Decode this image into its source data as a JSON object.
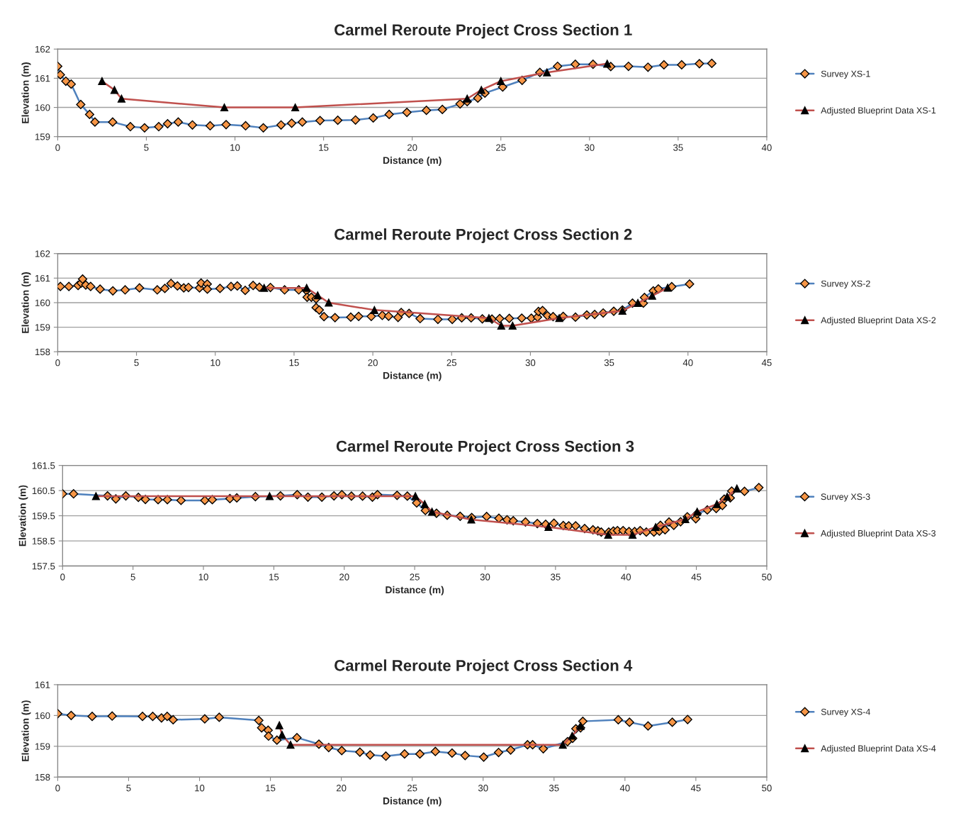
{
  "chart_data": [
    {
      "type": "line",
      "title": "Carmel Reroute Project Cross Section 1",
      "xlabel": "Distance (m)",
      "ylabel": "Elevation (m)",
      "xlim": [
        0,
        40
      ],
      "xticks": [
        0,
        5,
        10,
        15,
        20,
        25,
        30,
        35,
        40
      ],
      "ylim": [
        159,
        162
      ],
      "yticks": [
        159,
        160,
        161,
        162
      ],
      "grid": "y",
      "legend": "right",
      "line_style": "solid",
      "series": [
        {
          "name": "Survey XS-1",
          "color": "#4f81bd",
          "marker": "diamond",
          "x": [
            0,
            0.15,
            0.46,
            0.76,
            1.3,
            1.8,
            2.1,
            3.1,
            4.1,
            4.9,
            5.7,
            6.2,
            6.8,
            7.6,
            8.6,
            9.5,
            10.6,
            11.6,
            12.6,
            13.2,
            13.8,
            14.8,
            15.8,
            16.8,
            17.8,
            18.7,
            19.7,
            20.8,
            21.7,
            22.7,
            23.1,
            23.7,
            24.1,
            25.1,
            26.2,
            27.2,
            28.2,
            29.2,
            30.2,
            31.2,
            32.2,
            33.3,
            34.2,
            35.2,
            36.2,
            36.9
          ],
          "values": [
            161.41,
            161.12,
            160.9,
            160.8,
            160.1,
            159.76,
            159.5,
            159.5,
            159.34,
            159.3,
            159.34,
            159.44,
            159.5,
            159.4,
            159.37,
            159.41,
            159.37,
            159.3,
            159.4,
            159.46,
            159.5,
            159.55,
            159.56,
            159.57,
            159.64,
            159.76,
            159.83,
            159.9,
            159.93,
            160.12,
            160.2,
            160.32,
            160.49,
            160.7,
            160.93,
            161.2,
            161.41,
            161.48,
            161.48,
            161.4,
            161.41,
            161.38,
            161.46,
            161.46,
            161.5,
            161.51
          ]
        },
        {
          "name": "Adjusted Blueprint Data XS-1",
          "color": "#c0504d",
          "marker": "triangle",
          "x": [
            2.5,
            3.2,
            3.6,
            9.4,
            13.4,
            23.1,
            23.9,
            25.0,
            27.6,
            31.0
          ],
          "values": [
            160.9,
            160.6,
            160.3,
            160.0,
            160.0,
            160.3,
            160.6,
            160.9,
            161.2,
            161.5
          ]
        }
      ]
    },
    {
      "type": "line",
      "title": "Carmel Reroute Project Cross Section 2",
      "xlabel": "Distance (m)",
      "ylabel": "Elevation (m)",
      "xlim": [
        0,
        45
      ],
      "xticks": [
        0,
        5,
        10,
        15,
        20,
        25,
        30,
        35,
        40,
        45
      ],
      "ylim": [
        158,
        162
      ],
      "yticks": [
        158,
        159,
        160,
        161,
        162
      ],
      "grid": "y",
      "legend": "right",
      "line_style": "solid",
      "series": [
        {
          "name": "Survey XS-2",
          "color": "#4f81bd",
          "marker": "diamond",
          "x": [
            0.17,
            0.71,
            1.29,
            1.49,
            1.58,
            1.78,
            2.09,
            2.69,
            3.5,
            4.28,
            5.19,
            6.32,
            6.8,
            7.19,
            7.6,
            8.0,
            8.3,
            9.0,
            9.1,
            9.49,
            9.5,
            10.3,
            11.0,
            11.4,
            11.9,
            12.4,
            12.8,
            13.5,
            14.4,
            15.3,
            15.79,
            15.83,
            16.1,
            16.4,
            16.4,
            16.6,
            16.9,
            17.6,
            18.6,
            19.1,
            19.9,
            20.6,
            21.0,
            21.6,
            21.8,
            22.3,
            23.0,
            24.13,
            25.04,
            25.64,
            26.24,
            26.95,
            27.56,
            28.05,
            28.66,
            29.45,
            30.06,
            30.45,
            30.51,
            30.77,
            31.08,
            31.44,
            32.08,
            32.86,
            33.58,
            34.08,
            34.62,
            35.29,
            35.84,
            36.48,
            37.17,
            37.24,
            37.8,
            38.12,
            38.97,
            40.1
          ],
          "values": [
            160.66,
            160.66,
            160.7,
            160.8,
            160.96,
            160.72,
            160.66,
            160.55,
            160.48,
            160.52,
            160.6,
            160.52,
            160.58,
            160.78,
            160.68,
            160.6,
            160.62,
            160.6,
            160.8,
            160.76,
            160.55,
            160.58,
            160.66,
            160.68,
            160.5,
            160.7,
            160.63,
            160.62,
            160.52,
            160.52,
            160.49,
            160.22,
            160.22,
            160.16,
            159.8,
            159.7,
            159.43,
            159.39,
            159.41,
            159.44,
            159.44,
            159.48,
            159.45,
            159.4,
            159.6,
            159.56,
            159.35,
            159.32,
            159.32,
            159.38,
            159.38,
            159.34,
            159.33,
            159.35,
            159.36,
            159.37,
            159.37,
            159.41,
            159.64,
            159.68,
            159.47,
            159.43,
            159.44,
            159.41,
            159.5,
            159.52,
            159.58,
            159.65,
            159.7,
            159.98,
            159.98,
            160.21,
            160.48,
            160.56,
            160.65,
            160.76
          ]
        },
        {
          "name": "Adjusted Blueprint Data XS-2",
          "color": "#c0504d",
          "marker": "triangle",
          "x": [
            13.1,
            15.8,
            16.5,
            17.2,
            20.1,
            27.37,
            28.15,
            28.87,
            31.83,
            35.84,
            36.82,
            37.73,
            38.71
          ],
          "values": [
            160.6,
            160.6,
            160.3,
            160.0,
            159.7,
            159.37,
            159.06,
            159.06,
            159.37,
            159.67,
            159.99,
            160.28,
            160.61
          ]
        }
      ]
    },
    {
      "type": "line",
      "title": "Carmel Reroute Project Cross Section 3",
      "xlabel": "Distance (m)",
      "ylabel": "Elevation (m)",
      "xlim": [
        0,
        50
      ],
      "xticks": [
        0,
        5,
        10,
        15,
        20,
        25,
        30,
        35,
        40,
        45,
        50
      ],
      "ylim": [
        157.5,
        161.5
      ],
      "yticks": [
        157.5,
        158.5,
        159.5,
        160.5,
        161.5
      ],
      "grid": "y",
      "legend": "right",
      "line_style": "solid",
      "series": [
        {
          "name": "Survey XS-3",
          "color": "#4f81bd",
          "marker": "diamond",
          "x": [
            0,
            0.78,
            3.19,
            3.78,
            4.49,
            5.38,
            5.88,
            6.78,
            7.44,
            8.41,
            10.1,
            10.63,
            11.88,
            12.37,
            13.69,
            15.47,
            16.66,
            17.42,
            18.41,
            19.27,
            19.83,
            20.51,
            21.3,
            22.0,
            22.36,
            23.75,
            24.48,
            25.14,
            25.76,
            26.55,
            27.31,
            28.23,
            29.05,
            30.11,
            30.98,
            31.56,
            32.0,
            32.87,
            33.71,
            34.3,
            34.89,
            35.55,
            35.94,
            36.43,
            37.07,
            37.66,
            38.01,
            38.25,
            38.78,
            39.11,
            39.4,
            39.8,
            40.22,
            40.62,
            41.01,
            41.45,
            41.99,
            42.37,
            42.45,
            42.78,
            43.06,
            43.4,
            43.88,
            44.36,
            44.96,
            45.05,
            45.78,
            46.41,
            46.85,
            46.98,
            47.41,
            47.51,
            48.42,
            49.44
          ],
          "values": [
            160.37,
            160.37,
            160.29,
            160.17,
            160.29,
            160.23,
            160.15,
            160.14,
            160.14,
            160.11,
            160.11,
            160.14,
            160.18,
            160.21,
            160.26,
            160.29,
            160.34,
            160.24,
            160.24,
            160.29,
            160.34,
            160.28,
            160.28,
            160.24,
            160.34,
            160.31,
            160.28,
            160.01,
            159.71,
            159.6,
            159.52,
            159.48,
            159.43,
            159.47,
            159.4,
            159.34,
            159.3,
            159.25,
            159.19,
            159.16,
            159.2,
            159.11,
            159.1,
            159.1,
            158.99,
            158.94,
            158.9,
            158.85,
            158.85,
            158.89,
            158.91,
            158.91,
            158.87,
            158.87,
            158.91,
            158.85,
            158.85,
            158.89,
            159.12,
            158.94,
            159.25,
            159.12,
            159.26,
            159.46,
            159.38,
            159.58,
            159.73,
            159.79,
            159.91,
            160.16,
            160.21,
            160.48,
            160.47,
            160.62
          ]
        },
        {
          "name": "Adjusted Blueprint Data XS-3",
          "color": "#c0504d",
          "marker": "triangle",
          "x": [
            2.37,
            14.7,
            25.05,
            25.71,
            26.23,
            29.02,
            34.5,
            38.74,
            40.47,
            42.11,
            44.22,
            45.06,
            46.46,
            47.19,
            47.88
          ],
          "values": [
            160.28,
            160.28,
            160.28,
            159.96,
            159.66,
            159.35,
            159.05,
            158.74,
            158.74,
            159.05,
            159.36,
            159.66,
            159.96,
            160.26,
            160.58
          ]
        }
      ]
    },
    {
      "type": "line",
      "title": "Carmel Reroute Project Cross Section 4",
      "xlabel": "Distance (m)",
      "ylabel": "Elevation (m)",
      "xlim": [
        0,
        50
      ],
      "xticks": [
        0,
        5,
        10,
        15,
        20,
        25,
        30,
        35,
        40,
        45,
        50
      ],
      "ylim": [
        158,
        161
      ],
      "yticks": [
        158,
        159,
        160,
        161
      ],
      "grid": "y",
      "legend": "right",
      "line_style": "solid",
      "series": [
        {
          "name": "Survey XS-4",
          "color": "#4f81bd",
          "marker": "diamond",
          "x": [
            0,
            0.95,
            2.43,
            3.84,
            5.98,
            6.7,
            7.32,
            7.72,
            8.14,
            10.37,
            11.39,
            14.18,
            14.38,
            14.84,
            14.87,
            15.46,
            16.87,
            18.42,
            19.11,
            20.03,
            21.31,
            22.03,
            23.14,
            24.46,
            25.54,
            26.63,
            27.81,
            28.73,
            30.04,
            31.09,
            31.94,
            33.13,
            33.49,
            34.24,
            35.95,
            36.31,
            36.54,
            36.87,
            37.03,
            39.53,
            40.32,
            41.63,
            43.34,
            44.42
          ],
          "values": [
            160.06,
            160.0,
            159.97,
            159.98,
            159.97,
            159.97,
            159.92,
            159.97,
            159.86,
            159.89,
            159.94,
            159.84,
            159.6,
            159.52,
            159.33,
            159.2,
            159.28,
            159.07,
            158.96,
            158.86,
            158.81,
            158.72,
            158.68,
            158.75,
            158.75,
            158.83,
            158.78,
            158.7,
            158.65,
            158.8,
            158.88,
            159.05,
            159.05,
            158.92,
            159.15,
            159.26,
            159.57,
            159.6,
            159.81,
            159.86,
            159.78,
            159.66,
            159.78,
            159.87
          ]
        },
        {
          "name": "Adjusted Blueprint Data XS-4",
          "color": "#c0504d",
          "marker": "triangle",
          "x": [
            15.63,
            15.82,
            16.42,
            35.62,
            36.28,
            36.87
          ],
          "values": [
            159.68,
            159.37,
            159.05,
            159.05,
            159.34,
            159.66
          ]
        }
      ]
    }
  ]
}
